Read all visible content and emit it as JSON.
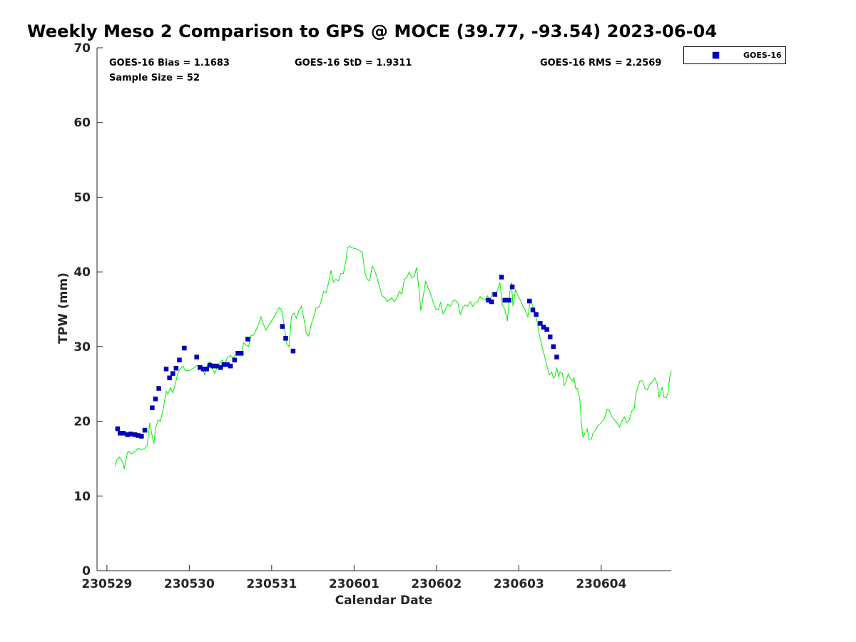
{
  "chart_data": {
    "type": "scatter",
    "title": "Weekly Meso 2 Comparison to GPS @ MOCE (39.77, -93.54) 2023-06-04",
    "xlabel": "Calendar Date",
    "ylabel": "TPW (mm)",
    "xlim": [
      -0.12,
      6.85
    ],
    "ylim": [
      0,
      70
    ],
    "xtick_labels": [
      "230529",
      "230530",
      "230531",
      "230601",
      "230602",
      "230603",
      "230604"
    ],
    "xtick_values": [
      0,
      1,
      2,
      3,
      4,
      5,
      6
    ],
    "ytick_values": [
      0,
      10,
      20,
      30,
      40,
      50,
      60,
      70
    ],
    "legend": {
      "position": "top-right",
      "entries": [
        "GOES-16"
      ]
    },
    "stats": {
      "bias": "GOES-16 Bias = 1.1683",
      "std": "GOES-16 StD = 1.9311",
      "rms": "GOES-16 RMS = 2.2569",
      "sample": "Sample Size = 52"
    },
    "series": [
      {
        "name": "GOES-16",
        "marker": "square",
        "color": "#0000cc",
        "points": [
          [
            0.13,
            19.0
          ],
          [
            0.16,
            18.4
          ],
          [
            0.2,
            18.4
          ],
          [
            0.25,
            18.2
          ],
          [
            0.29,
            18.3
          ],
          [
            0.34,
            18.2
          ],
          [
            0.38,
            18.1
          ],
          [
            0.42,
            18.0
          ],
          [
            0.46,
            18.8
          ],
          [
            0.55,
            21.8
          ],
          [
            0.59,
            23.0
          ],
          [
            0.63,
            24.4
          ],
          [
            0.72,
            27.0
          ],
          [
            0.76,
            25.8
          ],
          [
            0.8,
            26.4
          ],
          [
            0.84,
            27.1
          ],
          [
            0.88,
            28.2
          ],
          [
            0.94,
            29.8
          ],
          [
            1.09,
            28.6
          ],
          [
            1.13,
            27.2
          ],
          [
            1.17,
            27.0
          ],
          [
            1.21,
            27.0
          ],
          [
            1.25,
            27.5
          ],
          [
            1.29,
            27.4
          ],
          [
            1.33,
            27.4
          ],
          [
            1.38,
            27.2
          ],
          [
            1.42,
            27.6
          ],
          [
            1.46,
            27.6
          ],
          [
            1.5,
            27.4
          ],
          [
            1.55,
            28.2
          ],
          [
            1.59,
            29.1
          ],
          [
            1.63,
            29.1
          ],
          [
            1.71,
            31.0
          ],
          [
            2.13,
            32.7
          ],
          [
            2.17,
            31.1
          ],
          [
            2.26,
            29.4
          ],
          [
            4.63,
            36.2
          ],
          [
            4.67,
            36.0
          ],
          [
            4.71,
            37.0
          ],
          [
            4.79,
            39.3
          ],
          [
            4.83,
            36.2
          ],
          [
            4.88,
            36.2
          ],
          [
            4.92,
            38.0
          ],
          [
            5.13,
            36.1
          ],
          [
            5.17,
            34.9
          ],
          [
            5.21,
            34.3
          ],
          [
            5.26,
            33.1
          ],
          [
            5.3,
            32.6
          ],
          [
            5.34,
            32.3
          ],
          [
            5.38,
            31.3
          ],
          [
            5.42,
            30.0
          ],
          [
            5.46,
            28.6
          ]
        ]
      },
      {
        "name": "GPS",
        "marker": "line",
        "color": "#00ee00",
        "points": [
          [
            0.1,
            14.0
          ],
          [
            0.12,
            14.8
          ],
          [
            0.15,
            15.2
          ],
          [
            0.17,
            15.0
          ],
          [
            0.2,
            14.2
          ],
          [
            0.21,
            13.6
          ],
          [
            0.23,
            14.8
          ],
          [
            0.25,
            15.8
          ],
          [
            0.27,
            16.0
          ],
          [
            0.29,
            15.6
          ],
          [
            0.32,
            15.8
          ],
          [
            0.35,
            16.0
          ],
          [
            0.38,
            16.4
          ],
          [
            0.42,
            16.2
          ],
          [
            0.46,
            16.4
          ],
          [
            0.49,
            16.8
          ],
          [
            0.52,
            19.8
          ],
          [
            0.55,
            18.0
          ],
          [
            0.57,
            17.0
          ],
          [
            0.59,
            19.0
          ],
          [
            0.62,
            20.2
          ],
          [
            0.65,
            20.0
          ],
          [
            0.68,
            21.5
          ],
          [
            0.72,
            24.0
          ],
          [
            0.74,
            23.6
          ],
          [
            0.77,
            24.5
          ],
          [
            0.8,
            23.8
          ],
          [
            0.83,
            25.0
          ],
          [
            0.86,
            26.4
          ],
          [
            0.89,
            27.0
          ],
          [
            0.92,
            27.4
          ],
          [
            0.95,
            26.8
          ],
          [
            1.0,
            26.8
          ],
          [
            1.05,
            27.1
          ],
          [
            1.1,
            27.5
          ],
          [
            1.13,
            27.2
          ],
          [
            1.16,
            27.0
          ],
          [
            1.19,
            26.2
          ],
          [
            1.22,
            27.6
          ],
          [
            1.25,
            28.0
          ],
          [
            1.28,
            27.0
          ],
          [
            1.31,
            26.4
          ],
          [
            1.34,
            27.3
          ],
          [
            1.37,
            27.8
          ],
          [
            1.4,
            28.2
          ],
          [
            1.43,
            27.6
          ],
          [
            1.46,
            28.5
          ],
          [
            1.5,
            28.8
          ],
          [
            1.53,
            28.5
          ],
          [
            1.56,
            28.8
          ],
          [
            1.6,
            29.2
          ],
          [
            1.63,
            29.0
          ],
          [
            1.66,
            30.5
          ],
          [
            1.69,
            30.2
          ],
          [
            1.72,
            30.0
          ],
          [
            1.75,
            31.5
          ],
          [
            1.78,
            31.5
          ],
          [
            1.81,
            32.2
          ],
          [
            1.84,
            33.0
          ],
          [
            1.87,
            34.0
          ],
          [
            1.9,
            33.0
          ],
          [
            1.93,
            32.2
          ],
          [
            1.96,
            32.8
          ],
          [
            2.0,
            33.4
          ],
          [
            2.03,
            34.0
          ],
          [
            2.06,
            34.6
          ],
          [
            2.09,
            35.2
          ],
          [
            2.12,
            35.0
          ],
          [
            2.15,
            33.0
          ],
          [
            2.18,
            30.5
          ],
          [
            2.21,
            30.0
          ],
          [
            2.24,
            34.0
          ],
          [
            2.27,
            34.5
          ],
          [
            2.3,
            33.8
          ],
          [
            2.33,
            34.8
          ],
          [
            2.36,
            35.4
          ],
          [
            2.39,
            33.8
          ],
          [
            2.42,
            31.8
          ],
          [
            2.45,
            31.4
          ],
          [
            2.48,
            33.0
          ],
          [
            2.51,
            34.0
          ],
          [
            2.54,
            35.2
          ],
          [
            2.57,
            35.2
          ],
          [
            2.6,
            36.0
          ],
          [
            2.63,
            37.4
          ],
          [
            2.66,
            37.2
          ],
          [
            2.69,
            38.5
          ],
          [
            2.72,
            40.2
          ],
          [
            2.75,
            38.6
          ],
          [
            2.78,
            39.0
          ],
          [
            2.81,
            38.8
          ],
          [
            2.84,
            39.8
          ],
          [
            2.87,
            39.8
          ],
          [
            2.9,
            41.4
          ],
          [
            2.92,
            43.3
          ],
          [
            2.95,
            43.4
          ],
          [
            2.98,
            43.2
          ],
          [
            3.02,
            43.1
          ],
          [
            3.06,
            42.9
          ],
          [
            3.1,
            42.6
          ],
          [
            3.13,
            40.0
          ],
          [
            3.16,
            39.0
          ],
          [
            3.19,
            38.8
          ],
          [
            3.22,
            40.8
          ],
          [
            3.25,
            40.2
          ],
          [
            3.28,
            39.2
          ],
          [
            3.31,
            38.0
          ],
          [
            3.34,
            36.8
          ],
          [
            3.37,
            36.6
          ],
          [
            3.4,
            36.0
          ],
          [
            3.43,
            36.3
          ],
          [
            3.46,
            36.5
          ],
          [
            3.49,
            36.0
          ],
          [
            3.52,
            36.5
          ],
          [
            3.55,
            37.4
          ],
          [
            3.58,
            37.0
          ],
          [
            3.61,
            39.0
          ],
          [
            3.64,
            39.2
          ],
          [
            3.67,
            40.0
          ],
          [
            3.7,
            39.2
          ],
          [
            3.73,
            39.4
          ],
          [
            3.76,
            40.6
          ],
          [
            3.79,
            37.4
          ],
          [
            3.81,
            34.8
          ],
          [
            3.84,
            36.8
          ],
          [
            3.87,
            38.8
          ],
          [
            3.9,
            37.8
          ],
          [
            3.93,
            37.0
          ],
          [
            3.96,
            36.0
          ],
          [
            3.99,
            35.0
          ],
          [
            4.02,
            34.9
          ],
          [
            4.05,
            35.9
          ],
          [
            4.08,
            34.4
          ],
          [
            4.11,
            35.0
          ],
          [
            4.14,
            35.7
          ],
          [
            4.17,
            35.4
          ],
          [
            4.2,
            36.1
          ],
          [
            4.23,
            36.2
          ],
          [
            4.26,
            35.8
          ],
          [
            4.29,
            34.3
          ],
          [
            4.32,
            35.2
          ],
          [
            4.35,
            35.6
          ],
          [
            4.38,
            35.4
          ],
          [
            4.41,
            36.0
          ],
          [
            4.44,
            35.4
          ],
          [
            4.47,
            35.8
          ],
          [
            4.5,
            36.0
          ],
          [
            4.53,
            36.7
          ],
          [
            4.56,
            36.4
          ],
          [
            4.59,
            36.2
          ],
          [
            4.62,
            36.8
          ],
          [
            4.65,
            36.1
          ],
          [
            4.68,
            37.2
          ],
          [
            4.71,
            37.0
          ],
          [
            4.74,
            37.5
          ],
          [
            4.77,
            38.6
          ],
          [
            4.8,
            35.6
          ],
          [
            4.83,
            35.0
          ],
          [
            4.86,
            33.4
          ],
          [
            4.89,
            37.2
          ],
          [
            4.91,
            38.6
          ],
          [
            4.93,
            35.4
          ],
          [
            4.96,
            37.6
          ],
          [
            4.99,
            36.8
          ],
          [
            5.02,
            36.2
          ],
          [
            5.05,
            35.4
          ],
          [
            5.08,
            34.8
          ],
          [
            5.11,
            34.0
          ],
          [
            5.14,
            36.2
          ],
          [
            5.17,
            35.4
          ],
          [
            5.2,
            34.6
          ],
          [
            5.23,
            32.8
          ],
          [
            5.26,
            31.0
          ],
          [
            5.29,
            29.6
          ],
          [
            5.32,
            28.4
          ],
          [
            5.34,
            27.4
          ],
          [
            5.37,
            26.2
          ],
          [
            5.4,
            26.6
          ],
          [
            5.42,
            25.8
          ],
          [
            5.44,
            26.0
          ],
          [
            5.46,
            27.2
          ],
          [
            5.48,
            26.0
          ],
          [
            5.5,
            26.6
          ],
          [
            5.53,
            26.4
          ],
          [
            5.55,
            24.8
          ],
          [
            5.57,
            25.2
          ],
          [
            5.6,
            26.4
          ],
          [
            5.62,
            25.8
          ],
          [
            5.65,
            25.4
          ],
          [
            5.67,
            25.8
          ],
          [
            5.69,
            24.4
          ],
          [
            5.71,
            24.4
          ],
          [
            5.74,
            23.0
          ],
          [
            5.76,
            19.6
          ],
          [
            5.78,
            17.8
          ],
          [
            5.8,
            18.4
          ],
          [
            5.83,
            19.0
          ],
          [
            5.85,
            17.6
          ],
          [
            5.88,
            17.6
          ],
          [
            5.9,
            18.4
          ],
          [
            5.93,
            18.8
          ],
          [
            5.96,
            19.4
          ],
          [
            6.0,
            19.8
          ],
          [
            6.04,
            20.4
          ],
          [
            6.07,
            21.6
          ],
          [
            6.1,
            21.4
          ],
          [
            6.13,
            20.6
          ],
          [
            6.16,
            20.2
          ],
          [
            6.19,
            19.8
          ],
          [
            6.22,
            19.2
          ],
          [
            6.25,
            20.0
          ],
          [
            6.28,
            20.6
          ],
          [
            6.31,
            19.8
          ],
          [
            6.34,
            20.2
          ],
          [
            6.37,
            21.4
          ],
          [
            6.4,
            21.6
          ],
          [
            6.42,
            23.6
          ],
          [
            6.44,
            24.4
          ],
          [
            6.47,
            25.4
          ],
          [
            6.5,
            25.4
          ],
          [
            6.53,
            24.4
          ],
          [
            6.56,
            24.2
          ],
          [
            6.59,
            25.0
          ],
          [
            6.62,
            25.2
          ],
          [
            6.65,
            25.8
          ],
          [
            6.68,
            25.0
          ],
          [
            6.7,
            23.2
          ],
          [
            6.72,
            23.8
          ],
          [
            6.74,
            24.6
          ],
          [
            6.76,
            23.2
          ],
          [
            6.79,
            23.2
          ],
          [
            6.81,
            23.8
          ],
          [
            6.83,
            25.8
          ],
          [
            6.85,
            26.8
          ]
        ]
      }
    ]
  }
}
